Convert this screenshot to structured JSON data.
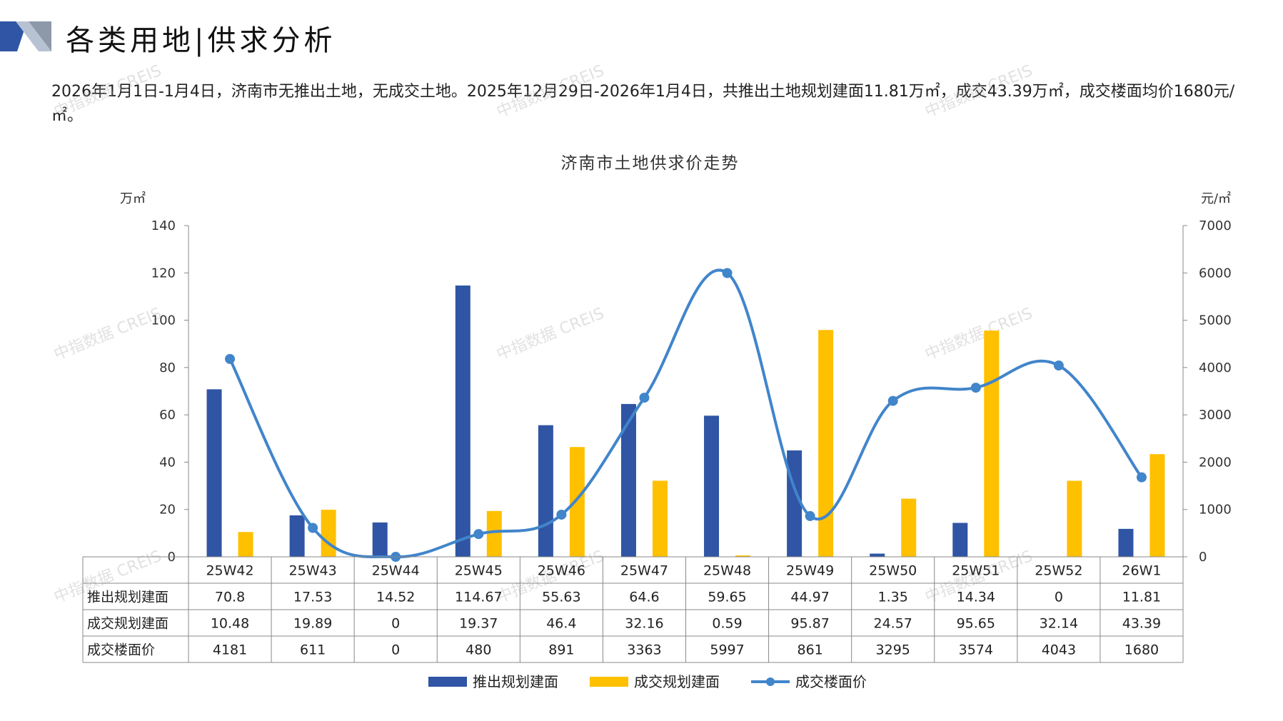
{
  "header": {
    "title": "各类用地|供求分析",
    "summary": "2026年1月1日-1月4日，济南市无推出土地，无成交土地。2025年12月29日-2026年1月4日，共推出土地规划建面11.81万㎡，成交43.39万㎡，成交楼面均价1680元/㎡。"
  },
  "watermark_text": "中指数据 CREIS",
  "chart_data": {
    "type": "bar",
    "title": "济南市土地供求价走势",
    "y_left_unit": "万㎡",
    "y_right_unit": "元/㎡",
    "y_left_range": [
      0,
      140
    ],
    "y_left_ticks": [
      "0",
      "20",
      "40",
      "60",
      "80",
      "100",
      "120",
      "140"
    ],
    "y_right_range": [
      0,
      7000
    ],
    "y_right_ticks": [
      "0",
      "1000",
      "2000",
      "3000",
      "4000",
      "5000",
      "6000",
      "7000"
    ],
    "categories": [
      "25W42",
      "25W43",
      "25W44",
      "25W45",
      "25W46",
      "25W47",
      "25W48",
      "25W49",
      "25W50",
      "25W51",
      "25W52",
      "26W1"
    ],
    "series": [
      {
        "name": "推出规划建面",
        "kind": "bar",
        "axis": "left",
        "color": "#2f55a4",
        "values": [
          70.8,
          17.53,
          14.52,
          114.67,
          55.63,
          64.6,
          59.65,
          44.97,
          1.35,
          14.34,
          0,
          11.81
        ],
        "labels": [
          "70.8",
          "17.53",
          "14.52",
          "114.67",
          "55.63",
          "64.6",
          "59.65",
          "44.97",
          "1.35",
          "14.34",
          "0",
          "11.81"
        ]
      },
      {
        "name": "成交规划建面",
        "kind": "bar",
        "axis": "left",
        "color": "#ffc000",
        "values": [
          10.48,
          19.89,
          0,
          19.37,
          46.4,
          32.16,
          0.59,
          95.87,
          24.57,
          95.65,
          32.14,
          43.39
        ],
        "labels": [
          "10.48",
          "19.89",
          "0",
          "19.37",
          "46.4",
          "32.16",
          "0.59",
          "95.87",
          "24.57",
          "95.65",
          "32.14",
          "43.39"
        ]
      },
      {
        "name": "成交楼面价",
        "kind": "line",
        "axis": "right",
        "color": "#4185cb",
        "values": [
          4181,
          611,
          0,
          480,
          891,
          3363,
          5997,
          861,
          3295,
          3574,
          4043,
          1680
        ],
        "labels": [
          "4181",
          "611",
          "0",
          "480",
          "891",
          "3363",
          "5997",
          "861",
          "3295",
          "3574",
          "4043",
          "1680"
        ]
      }
    ],
    "legend_position": "bottom",
    "data_table": true,
    "grid": false
  }
}
